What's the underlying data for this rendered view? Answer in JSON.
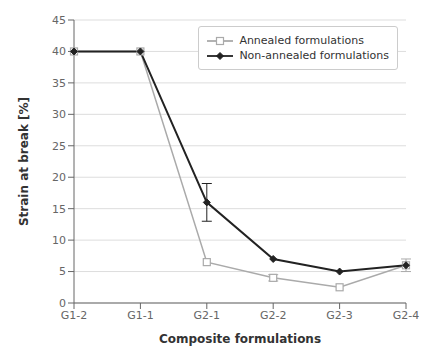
{
  "chart_data": {
    "type": "line",
    "categories": [
      "G1-2",
      "G1-1",
      "G2-1",
      "G2-2",
      "G2-3",
      "G2-4"
    ],
    "series": [
      {
        "name": "Annealed formulations",
        "color": "#aaaaaa",
        "marker": "square",
        "values": [
          40,
          40,
          6.5,
          4,
          2.5,
          6
        ],
        "yerr": [
          0,
          0,
          0,
          0.5,
          0,
          1.0
        ]
      },
      {
        "name": "Non-annealed formulations",
        "color": "#222222",
        "marker": "diamond",
        "values": [
          40,
          40,
          16,
          7,
          5,
          6
        ],
        "yerr": [
          0,
          0,
          3.0,
          0,
          0,
          0
        ]
      }
    ],
    "xlabel": "Composite formulations",
    "ylabel": "Strain at break [%]",
    "ylim": [
      0,
      45
    ],
    "yticks": [
      0,
      5,
      10,
      15,
      20,
      25,
      30,
      35,
      40,
      45
    ],
    "grid": "y",
    "legend": "upper right"
  }
}
